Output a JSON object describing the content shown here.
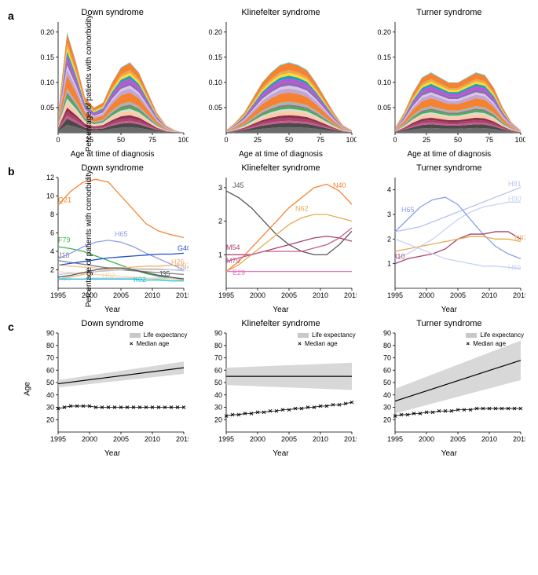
{
  "rows": [
    "a",
    "b",
    "c"
  ],
  "syndromes": [
    "Down syndrome",
    "Klinefelter syndrome",
    "Turner syndrome"
  ],
  "rowA": {
    "ylabel": "Percentage of patients with comorbidity",
    "xlabel": "Age at time of diagnosis",
    "ylim": [
      0,
      0.22
    ],
    "yticks": [
      0.05,
      0.1,
      0.15,
      0.2
    ],
    "xlim": [
      0,
      100
    ],
    "xticks": [
      0,
      25,
      50,
      75,
      100
    ],
    "stack_colors": [
      "#6b6b6b",
      "#4a4a4a",
      "#c75b8a",
      "#a8426b",
      "#8a2e52",
      "#fbcba7",
      "#d9d9d9",
      "#3cb44b",
      "#808080",
      "#b0b0b0",
      "#f58231",
      "#c0a5d6",
      "#d6c9e1",
      "#9467bd",
      "#ba55d3",
      "#17a2b8",
      "#ffd92f",
      "#e8a94f",
      "#f58231",
      "#42d4f4"
    ],
    "panels": [
      {
        "profile": [
          0.04,
          0.2,
          0.14,
          0.07,
          0.05,
          0.06,
          0.1,
          0.13,
          0.14,
          0.12,
          0.08,
          0.04,
          0.015,
          0.005,
          0.0
        ]
      },
      {
        "profile": [
          0.005,
          0.02,
          0.04,
          0.07,
          0.1,
          0.12,
          0.135,
          0.14,
          0.135,
          0.125,
          0.1,
          0.07,
          0.04,
          0.015,
          0.005
        ]
      },
      {
        "profile": [
          0.01,
          0.04,
          0.08,
          0.11,
          0.12,
          0.11,
          0.1,
          0.1,
          0.11,
          0.12,
          0.115,
          0.09,
          0.05,
          0.02,
          0.005
        ]
      }
    ],
    "stack_fracs": [
      0.08,
      0.06,
      0.03,
      0.04,
      0.04,
      0.06,
      0.03,
      0.03,
      0.03,
      0.04,
      0.13,
      0.06,
      0.04,
      0.05,
      0.05,
      0.04,
      0.04,
      0.04,
      0.1,
      0.01
    ]
  },
  "rowB": {
    "ylabel": "Percentage of patients with comorbidity",
    "xlabel": "Year",
    "xlim": [
      1995,
      2015
    ],
    "xticks": [
      1995,
      2000,
      2005,
      2010,
      2015
    ],
    "panels": [
      {
        "ylim": [
          0,
          12
        ],
        "yticks": [
          2,
          4,
          6,
          8,
          10,
          12
        ],
        "series": [
          {
            "label": "Q21",
            "color": "#f58231",
            "y": [
              9,
              10.5,
              11.5,
              11.8,
              11.5,
              10,
              8.5,
              7,
              6.2,
              5.8,
              5.5
            ],
            "lx": 1995,
            "ly": 9.3
          },
          {
            "label": "F79",
            "color": "#3cb44b",
            "y": [
              4.5,
              4.3,
              4.0,
              3.5,
              3.0,
              2.5,
              2.0,
              1.6,
              1.3,
              1.1,
              0.9
            ],
            "lx": 1995,
            "ly": 5.0
          },
          {
            "label": "J18",
            "color": "#7f7f7f",
            "y": [
              3.0,
              2.8,
              2.6,
              2.4,
              2.2,
              2.0,
              1.9,
              1.8,
              1.7,
              1.6,
              1.5
            ],
            "lx": 1995,
            "ly": 3.3
          },
          {
            "label": "H65",
            "color": "#8c9ee8",
            "y": [
              3.2,
              3.8,
              4.5,
              5.0,
              5.2,
              5.0,
              4.5,
              3.8,
              3.2,
              2.6,
              2.0
            ],
            "lx": 2004,
            "ly": 5.6
          },
          {
            "label": "G40",
            "color": "#1f4fd1",
            "y": [
              2.5,
              2.7,
              2.9,
              3.1,
              3.3,
              3.4,
              3.5,
              3.6,
              3.7,
              3.7,
              3.8
            ],
            "lx": 2014,
            "ly": 4.1
          },
          {
            "label": "H26",
            "color": "#f0b070",
            "y": [
              1.0,
              1.2,
              1.5,
              1.8,
              2.0,
              2.2,
              2.3,
              2.4,
              2.4,
              2.5,
              2.5
            ],
            "lx": 2013,
            "ly": 2.6
          },
          {
            "label": "H92",
            "color": "#f5c089",
            "y": [
              2.5,
              2.4,
              2.3,
              2.2,
              2.1,
              2.1,
              2.0,
              2.0,
              2.0,
              2.0,
              2.0
            ],
            "lx": 2014,
            "ly": 2.2
          },
          {
            "label": "H91",
            "color": "#b5c4f0",
            "y": [
              1.5,
              1.6,
              1.7,
              1.8,
              1.9,
              2.0,
              2.1,
              2.1,
              2.1,
              2.0,
              1.9
            ],
            "lx": 2014,
            "ly": 1.9
          },
          {
            "label": "H90",
            "color": "#c7d2f5",
            "y": [
              1.0,
              1.0,
              1.0,
              1.1,
              1.1,
              1.1,
              1.1,
              1.1,
              1.1,
              1.1,
              1.1
            ],
            "lx": 1995,
            "ly": 0.8
          },
          {
            "label": "H52",
            "color": "#f5d5a5",
            "y": [
              1.8,
              1.7,
              1.6,
              1.5,
              1.4,
              1.3,
              1.2,
              1.1,
              1.0,
              1.0,
              0.9
            ],
            "lx": 2002,
            "ly": 1.1
          },
          {
            "label": "J35",
            "color": "#555555",
            "y": [
              1.2,
              1.4,
              1.7,
              2.0,
              2.2,
              2.2,
              2.0,
              1.7,
              1.4,
              1.2,
              1.0
            ],
            "lx": 2011,
            "ly": 1.3
          },
          {
            "label": "K02",
            "color": "#17becf",
            "y": [
              1.0,
              1.0,
              1.0,
              1.0,
              1.0,
              1.0,
              1.0,
              0.9,
              0.9,
              0.8,
              0.8
            ],
            "lx": 2007,
            "ly": 0.7
          }
        ]
      },
      {
        "ylim": [
          0,
          3.3
        ],
        "yticks": [
          1,
          2,
          3
        ],
        "series": [
          {
            "label": "J45",
            "color": "#555555",
            "y": [
              2.9,
              2.7,
              2.4,
              2.0,
              1.6,
              1.3,
              1.1,
              1.0,
              1.0,
              1.3,
              1.7
            ],
            "lx": 1996,
            "ly": 3.0
          },
          {
            "label": "N40",
            "color": "#f58231",
            "y": [
              0.5,
              0.8,
              1.2,
              1.6,
              2.0,
              2.4,
              2.7,
              3.0,
              3.1,
              2.9,
              2.5
            ],
            "lx": 2012,
            "ly": 3.0
          },
          {
            "label": "N62",
            "color": "#e8a94f",
            "y": [
              0.5,
              0.7,
              1.0,
              1.3,
              1.6,
              1.9,
              2.1,
              2.2,
              2.2,
              2.1,
              2.0
            ],
            "lx": 2006,
            "ly": 2.3
          },
          {
            "label": "M54",
            "color": "#a8426b",
            "y": [
              1.0,
              1.0,
              1.0,
              1.1,
              1.2,
              1.3,
              1.4,
              1.5,
              1.55,
              1.5,
              1.4
            ],
            "lx": 1995,
            "ly": 1.15
          },
          {
            "label": "M79",
            "color": "#c75b8a",
            "y": [
              0.8,
              0.9,
              1.0,
              1.1,
              1.1,
              1.1,
              1.1,
              1.2,
              1.3,
              1.5,
              1.8
            ],
            "lx": 1995,
            "ly": 0.75
          },
          {
            "label": "E29",
            "color": "#e377c2",
            "y": [
              0.5,
              0.5,
              0.5,
              0.5,
              0.5,
              0.5,
              0.5,
              0.5,
              0.5,
              0.5,
              0.5
            ],
            "lx": 1996,
            "ly": 0.4
          }
        ]
      },
      {
        "ylim": [
          0,
          4.5
        ],
        "yticks": [
          1,
          2,
          3,
          4
        ],
        "series": [
          {
            "label": "H91",
            "color": "#b5c4f0",
            "y": [
              2.3,
              2.4,
              2.5,
              2.7,
              2.9,
              3.1,
              3.3,
              3.5,
              3.7,
              3.9,
              4.1
            ],
            "lx": 2013,
            "ly": 4.15
          },
          {
            "label": "H90",
            "color": "#c7d2f5",
            "y": [
              1.2,
              1.4,
              1.7,
              2.0,
              2.4,
              2.8,
              3.1,
              3.3,
              3.4,
              3.5,
              3.5
            ],
            "lx": 2013,
            "ly": 3.55
          },
          {
            "label": "H65",
            "color": "#8c9ee8",
            "y": [
              2.3,
              2.8,
              3.3,
              3.6,
              3.7,
              3.4,
              2.8,
              2.2,
              1.7,
              1.4,
              1.2
            ],
            "lx": 1996,
            "ly": 3.1
          },
          {
            "label": "I10",
            "color": "#a8426b",
            "y": [
              1.0,
              1.2,
              1.3,
              1.4,
              1.6,
              2.0,
              2.2,
              2.2,
              2.3,
              2.3,
              2.0
            ],
            "lx": 1995,
            "ly": 1.2
          },
          {
            "label": "N97",
            "color": "#e8a94f",
            "y": [
              1.5,
              1.6,
              1.7,
              1.8,
              1.9,
              2.0,
              2.1,
              2.1,
              2.0,
              2.0,
              1.9
            ],
            "lx": 2014,
            "ly": 1.95
          },
          {
            "label": "H66",
            "color": "#c7d2f5",
            "y": [
              2.0,
              1.8,
              1.6,
              1.4,
              1.2,
              1.1,
              1.0,
              0.9,
              0.9,
              0.85,
              0.8
            ],
            "lx": 2013,
            "ly": 0.75
          }
        ]
      }
    ]
  },
  "rowC": {
    "ylabel": "Age",
    "xlabel": "Year",
    "ylim": [
      10,
      90
    ],
    "yticks": [
      20,
      30,
      40,
      50,
      60,
      70,
      80,
      90
    ],
    "xlim": [
      1995,
      2015
    ],
    "xticks": [
      1995,
      2000,
      2005,
      2010,
      2015
    ],
    "legend": [
      "Life expectancy",
      "Median age"
    ],
    "panels": [
      {
        "le": [
          49,
          62
        ],
        "band": [
          3,
          5
        ],
        "median": [
          29,
          30,
          31,
          31,
          31,
          31,
          30,
          30,
          30,
          30,
          30,
          30,
          30,
          30,
          30,
          30,
          30,
          30,
          30,
          30,
          30
        ]
      },
      {
        "le": [
          55,
          55
        ],
        "band": [
          7,
          11
        ],
        "median": [
          23,
          24,
          24,
          25,
          25,
          26,
          26,
          27,
          27,
          28,
          28,
          29,
          29,
          30,
          30,
          31,
          31,
          32,
          32,
          33,
          34
        ]
      },
      {
        "le": [
          35,
          68
        ],
        "band": [
          10,
          16
        ],
        "median": [
          23,
          24,
          24,
          25,
          25,
          26,
          26,
          27,
          27,
          27,
          28,
          28,
          28,
          29,
          29,
          29,
          29,
          29,
          29,
          29,
          29
        ]
      }
    ]
  }
}
